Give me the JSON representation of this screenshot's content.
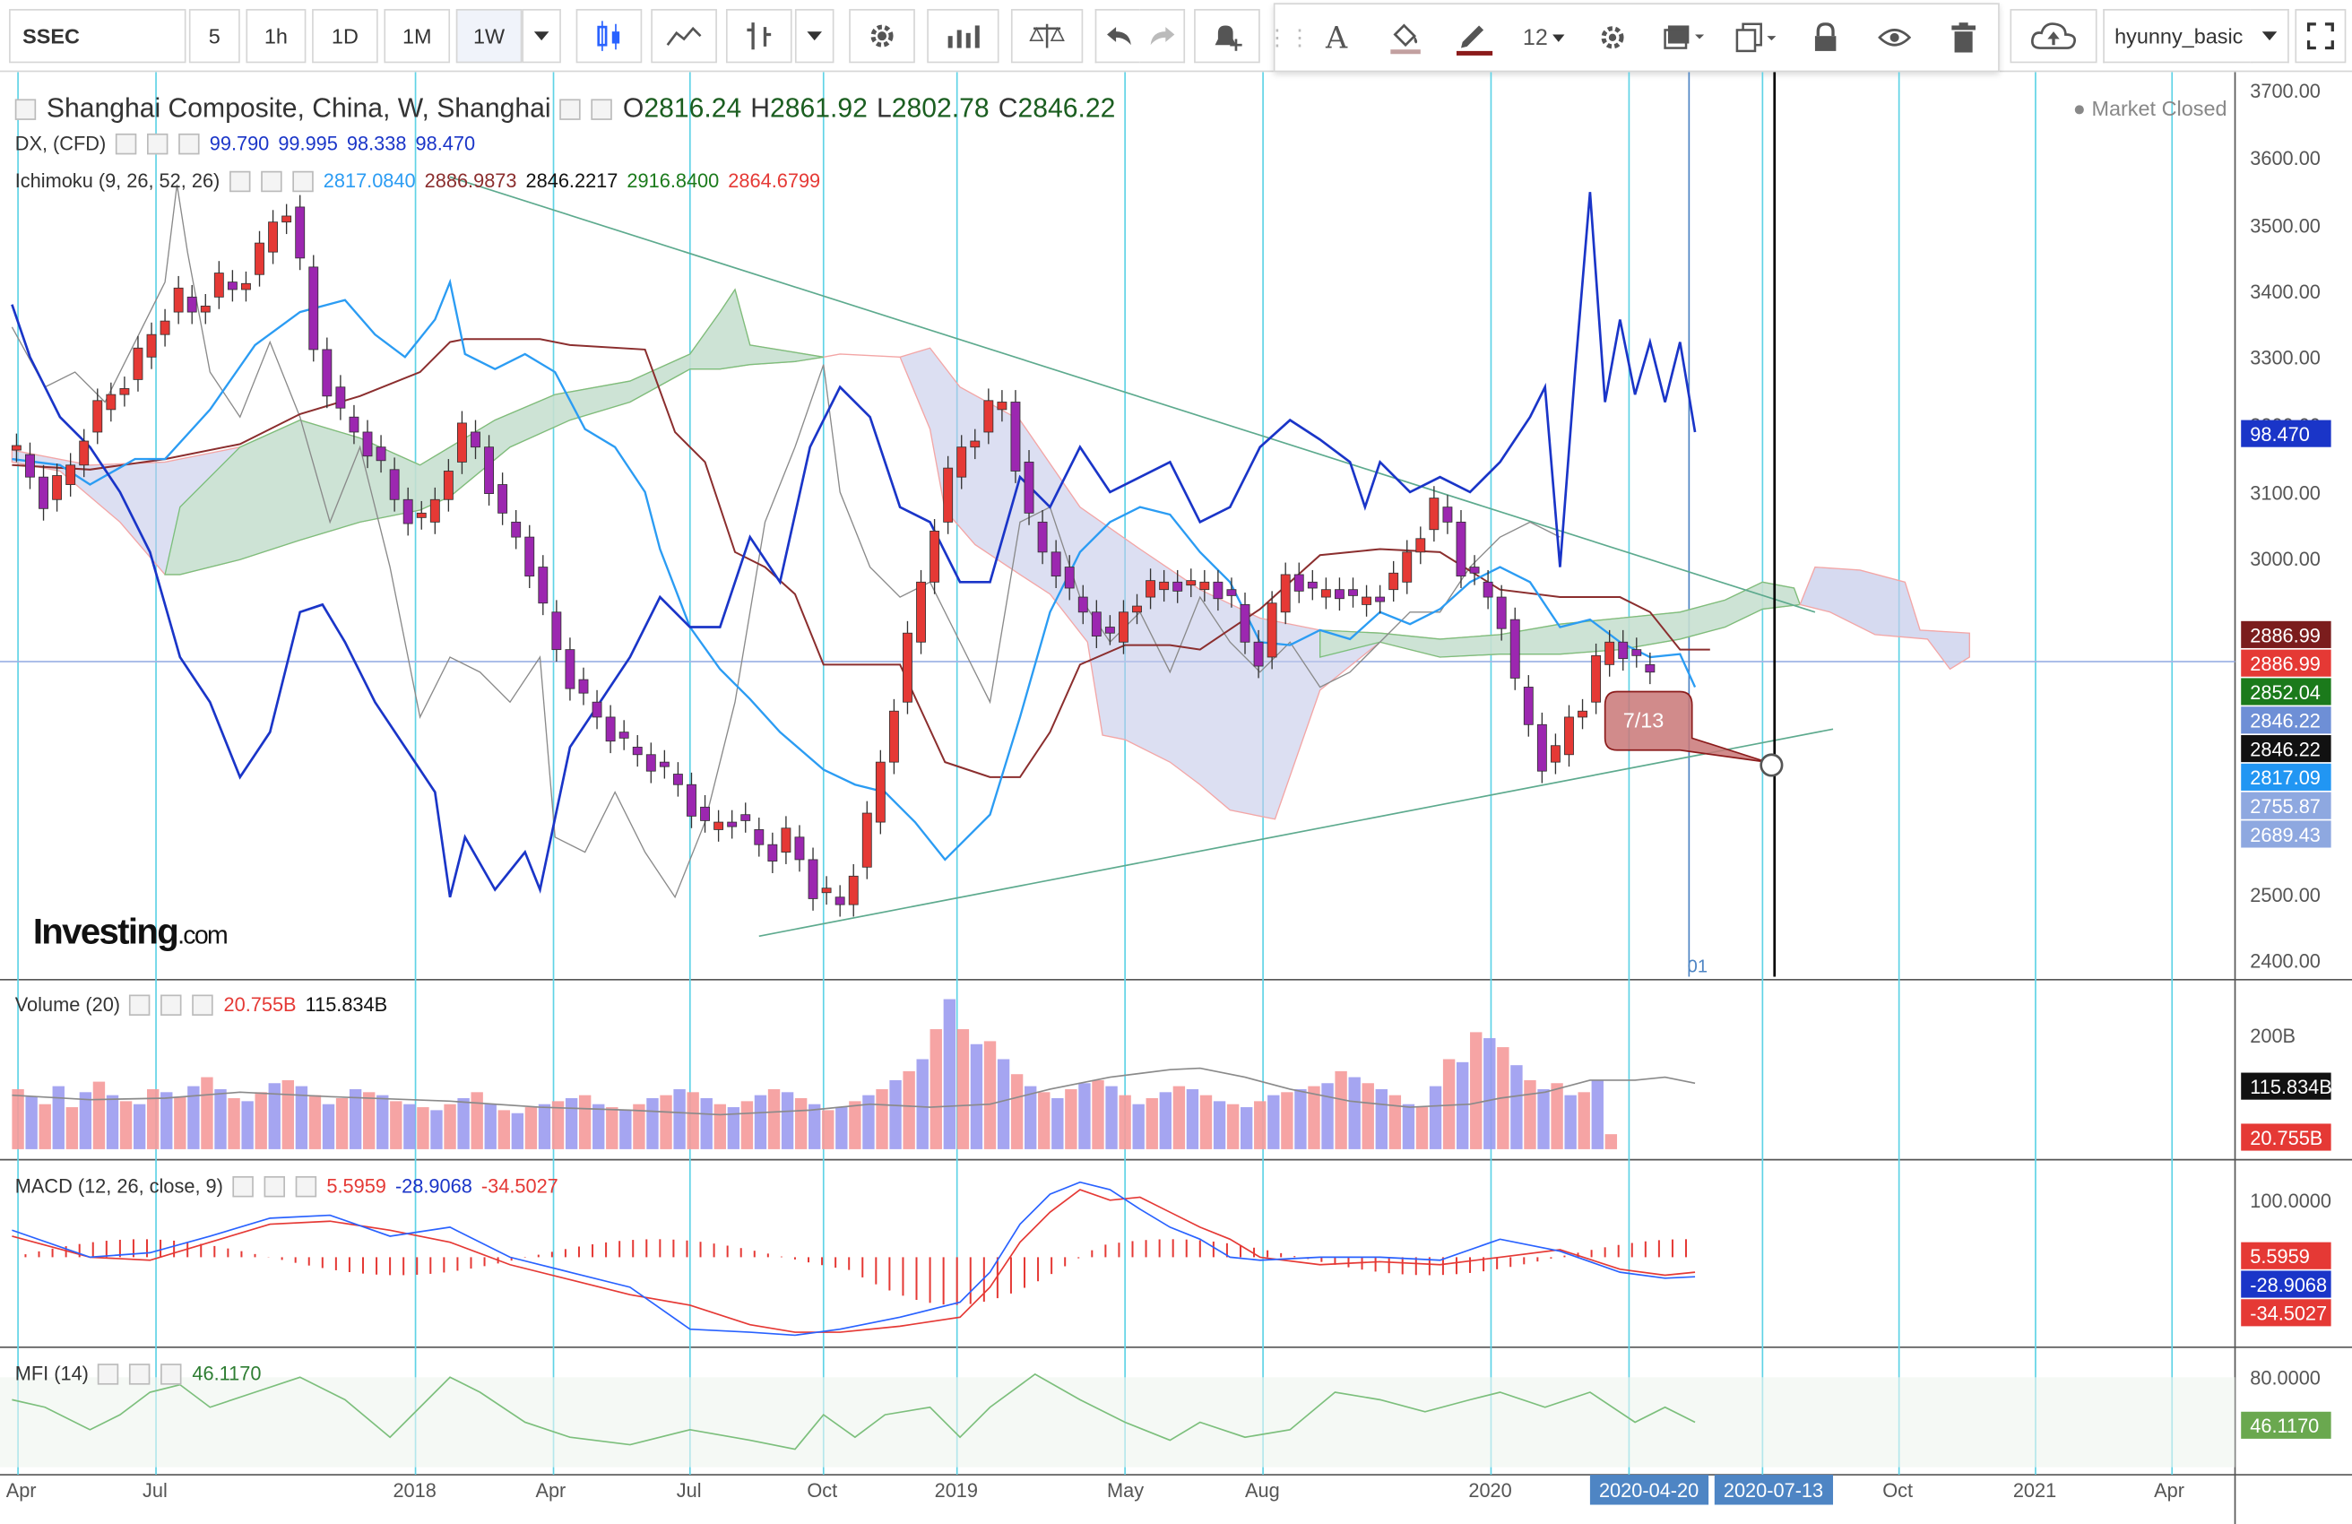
{
  "toolbar": {
    "symbol": "SSEC",
    "intervals": [
      "5",
      "1h",
      "1D",
      "1M",
      "1W"
    ],
    "active_interval": "1W",
    "font_size": "12",
    "user": "hyunny_basic"
  },
  "main_legend": {
    "title": "Shanghai Composite, China, W, Shanghai",
    "o_label": "O",
    "o": "2816.24",
    "h_label": "H",
    "h": "2861.92",
    "l_label": "L",
    "l": "2802.78",
    "c_label": "C",
    "c": "2846.22"
  },
  "dx_legend": {
    "name": "DX, (CFD)",
    "v1": "99.790",
    "v2": "99.995",
    "v3": "98.338",
    "v4": "98.470"
  },
  "ichimoku_legend": {
    "name": "Ichimoku (9, 26, 52, 26)",
    "v1": "2817.0840",
    "v2": "2886.9873",
    "v3": "2846.2217",
    "v4": "2916.8400",
    "v5": "2864.6799"
  },
  "market_status": "Market Closed",
  "watermark": {
    "brand": "Investing",
    "suffix": ".com"
  },
  "price_axis": [
    "3700.00",
    "3600.00",
    "3500.00",
    "3400.00",
    "3300.00",
    "3200.00",
    "3100.00",
    "3000.00",
    "2500.00",
    "2400.00"
  ],
  "price_labels": [
    {
      "text": "98.470",
      "color": "#1a35c8"
    },
    {
      "text": "2886.99",
      "color": "#7b1d1d"
    },
    {
      "text": "2886.99",
      "color": "#e53935"
    },
    {
      "text": "2852.04",
      "color": "#1b7a1b"
    },
    {
      "text": "2846.22",
      "color": "#6e8fd6"
    },
    {
      "text": "2846.22",
      "color": "#111111"
    },
    {
      "text": "2817.09",
      "color": "#2196f3"
    },
    {
      "text": "2755.87",
      "color": "#8ea8e0"
    },
    {
      "text": "2689.43",
      "color": "#8ea8e0"
    }
  ],
  "callout": "7/13",
  "marker_label": "01",
  "volume": {
    "name": "Volume (20)",
    "v1": "20.755B",
    "v2": "115.834B",
    "axis": "200B",
    "label1": "115.834B",
    "label2": "20.755B"
  },
  "macd": {
    "name": "MACD (12, 26, close, 9)",
    "v1": "5.5959",
    "v2": "-28.9068",
    "v3": "-34.5027",
    "axis": "100.0000",
    "label1": "5.5959",
    "label2": "-28.9068",
    "label3": "-34.5027"
  },
  "mfi": {
    "name": "MFI (14)",
    "v1": "46.1170",
    "axis": "80.0000",
    "label1": "46.1170"
  },
  "time_axis": [
    "Apr",
    "Jul",
    "2018",
    "Apr",
    "Jul",
    "Oct",
    "2019",
    "May",
    "Aug",
    "2020",
    "Oct",
    "2021",
    "Apr"
  ],
  "time_highlights": [
    "2020-04-20",
    "2020-07-13"
  ],
  "colors": {
    "up": "#e53935",
    "down": "#9c27b0",
    "dx": "#1a35c8",
    "tenkan": "#2196f3",
    "kijun": "#8b2e2e",
    "cloud_green": "#c8e6c9",
    "cloud_blue": "#c5cae9",
    "grid_cyan": "#5fd3e6"
  }
}
